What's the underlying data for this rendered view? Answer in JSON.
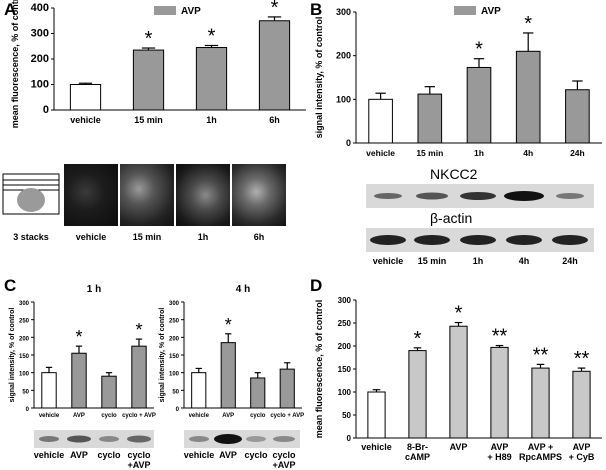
{
  "figure": {
    "panels": [
      {
        "letter": "A",
        "chart_data": {
          "type": "bar",
          "ylabel": "mean fluorescence, % of control",
          "ylim": [
            0,
            400
          ],
          "yticks": [
            0,
            100,
            200,
            300,
            400
          ],
          "legend": "AVP",
          "legend_placement": "top-center",
          "categories": [
            "vehicle",
            "15 min",
            "1h",
            "6h"
          ],
          "values": [
            100,
            235,
            245,
            350
          ],
          "errors": [
            5,
            8,
            8,
            15
          ],
          "fill": [
            "#ffffff",
            "#999999",
            "#999999",
            "#999999"
          ],
          "significance": [
            "",
            "*",
            "*",
            "*"
          ]
        },
        "image_captions": [
          "3 stacks",
          "vehicle",
          "15 min",
          "1h",
          "6h"
        ]
      },
      {
        "letter": "B",
        "chart_data": {
          "type": "bar",
          "ylabel": "signal intensity, % of control",
          "ylim": [
            0,
            300
          ],
          "yticks": [
            0,
            100,
            200,
            300
          ],
          "legend": "AVP",
          "legend_placement": "top-center",
          "categories": [
            "vehicle",
            "15 min",
            "1h",
            "4h",
            "24h"
          ],
          "values": [
            100,
            112,
            173,
            210,
            122
          ],
          "errors": [
            14,
            17,
            20,
            42,
            20
          ],
          "fill": [
            "#ffffff",
            "#999999",
            "#999999",
            "#999999",
            "#999999"
          ],
          "significance": [
            "",
            "",
            "*",
            "*",
            ""
          ]
        },
        "blot_labels": [
          "NKCC2",
          "β-actin"
        ],
        "lane_labels": [
          "vehicle",
          "15 min",
          "1h",
          "4h",
          "24h"
        ]
      },
      {
        "letter": "C",
        "subcharts": [
          {
            "chart_data": {
              "type": "bar",
              "title": "1 h",
              "ylabel": "signal intensity, % of control",
              "ylim": [
                0,
                300
              ],
              "yticks": [
                0,
                50,
                100,
                150,
                200,
                250,
                300
              ],
              "categories": [
                "vehicle",
                "AVP",
                "cyclo",
                "cyclo + AVP"
              ],
              "values": [
                100,
                155,
                90,
                175
              ],
              "errors": [
                15,
                20,
                10,
                20
              ],
              "fill": [
                "#ffffff",
                "#999999",
                "#999999",
                "#999999"
              ],
              "significance": [
                "",
                "*",
                "",
                "*"
              ]
            }
          },
          {
            "chart_data": {
              "type": "bar",
              "title": "4 h",
              "ylabel": "signal intensity, % of control",
              "ylim": [
                0,
                300
              ],
              "yticks": [
                0,
                50,
                100,
                150,
                200,
                250,
                300
              ],
              "categories": [
                "vehicle",
                "AVP",
                "cyclo",
                "cyclo + AVP"
              ],
              "values": [
                100,
                185,
                85,
                110
              ],
              "errors": [
                12,
                25,
                15,
                18
              ],
              "fill": [
                "#ffffff",
                "#999999",
                "#999999",
                "#999999"
              ],
              "significance": [
                "",
                "*",
                "",
                ""
              ]
            }
          }
        ],
        "lane_labels_left": [
          "vehicle",
          "AVP",
          "cyclo",
          "cyclo\n+AVP"
        ],
        "lane_labels_right": [
          "vehicle",
          "AVP",
          "cyclo",
          "cyclo\n+AVP"
        ]
      },
      {
        "letter": "D",
        "chart_data": {
          "type": "bar",
          "ylabel": "mean fluorescence, % of control",
          "ylim": [
            0,
            300
          ],
          "yticks": [
            0,
            50,
            100,
            150,
            200,
            250,
            300
          ],
          "categories": [
            "vehicle",
            "8-Br-\ncAMP",
            "AVP",
            "AVP\n+ H89",
            "AVP +\nRpcAMPS",
            "AVP\n+ CyB"
          ],
          "values": [
            100,
            190,
            243,
            197,
            152,
            145
          ],
          "errors": [
            5,
            6,
            8,
            4,
            8,
            7
          ],
          "fill": [
            "#ffffff",
            "#c8c8c8",
            "#c8c8c8",
            "#c8c8c8",
            "#c8c8c8",
            "#c8c8c8"
          ],
          "significance": [
            "",
            "*",
            "*",
            "**",
            "**",
            "**"
          ]
        }
      }
    ]
  }
}
